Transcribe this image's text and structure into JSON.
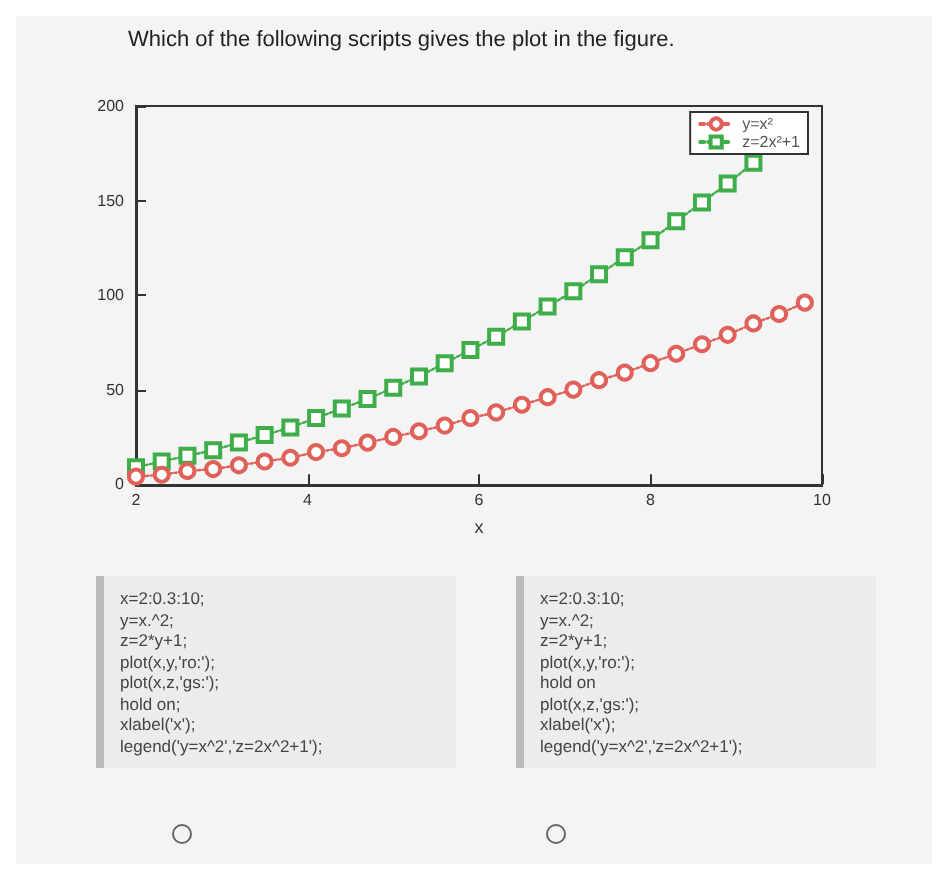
{
  "chart_data": {
    "type": "line",
    "title": "Which of the following scripts gives the plot in the figure.",
    "xlabel": "x",
    "x": [
      2,
      2.3,
      2.6,
      2.9,
      3.2,
      3.5,
      3.8,
      4.1,
      4.4,
      4.7,
      5,
      5.3,
      5.6,
      5.9,
      6.2,
      6.5,
      6.8,
      7.1,
      7.4,
      7.7,
      8,
      8.3,
      8.6,
      8.9,
      9.2,
      9.5,
      9.8
    ],
    "series": [
      {
        "name": "y=x²",
        "color": "#e0605a",
        "marker": "circle",
        "values": [
          4,
          5,
          7,
          8,
          10,
          12,
          14,
          17,
          19,
          22,
          25,
          28,
          31,
          35,
          38,
          42,
          46,
          50,
          55,
          59,
          64,
          69,
          74,
          79,
          85,
          90,
          96
        ]
      },
      {
        "name": "z=2x²+1",
        "color": "#3fae4a",
        "marker": "square",
        "values": [
          9,
          12,
          15,
          18,
          22,
          26,
          30,
          35,
          40,
          45,
          51,
          57,
          64,
          71,
          78,
          86,
          94,
          102,
          111,
          120,
          129,
          139,
          149,
          159,
          170,
          null,
          null
        ]
      }
    ],
    "line_style": "dotted",
    "xlim": [
      2,
      10
    ],
    "xticks": [
      2,
      4,
      6,
      8,
      10
    ],
    "ylim": [
      0,
      200
    ],
    "yticks": [
      0,
      50,
      100,
      150,
      200
    ],
    "grid": false,
    "legend": "top right",
    "annotations": [
      "x=2:0.3:10;\ny=x.^2;\nz=2*y+1;\nplot(x,y,'ro:');\nplot(x,z,'gs:');\nhold on;\nxlabel('x');\nlegend('y=x^2','z=2x^2+1');",
      "x=2:0.3:10;\ny=x.^2;\nz=2*y+1;\nplot(x,y,'ro:');\nhold on\nplot(x,z,'gs:');\nxlabel('x');\nlegend('y=x^2','z=2x^2+1');"
    ]
  }
}
